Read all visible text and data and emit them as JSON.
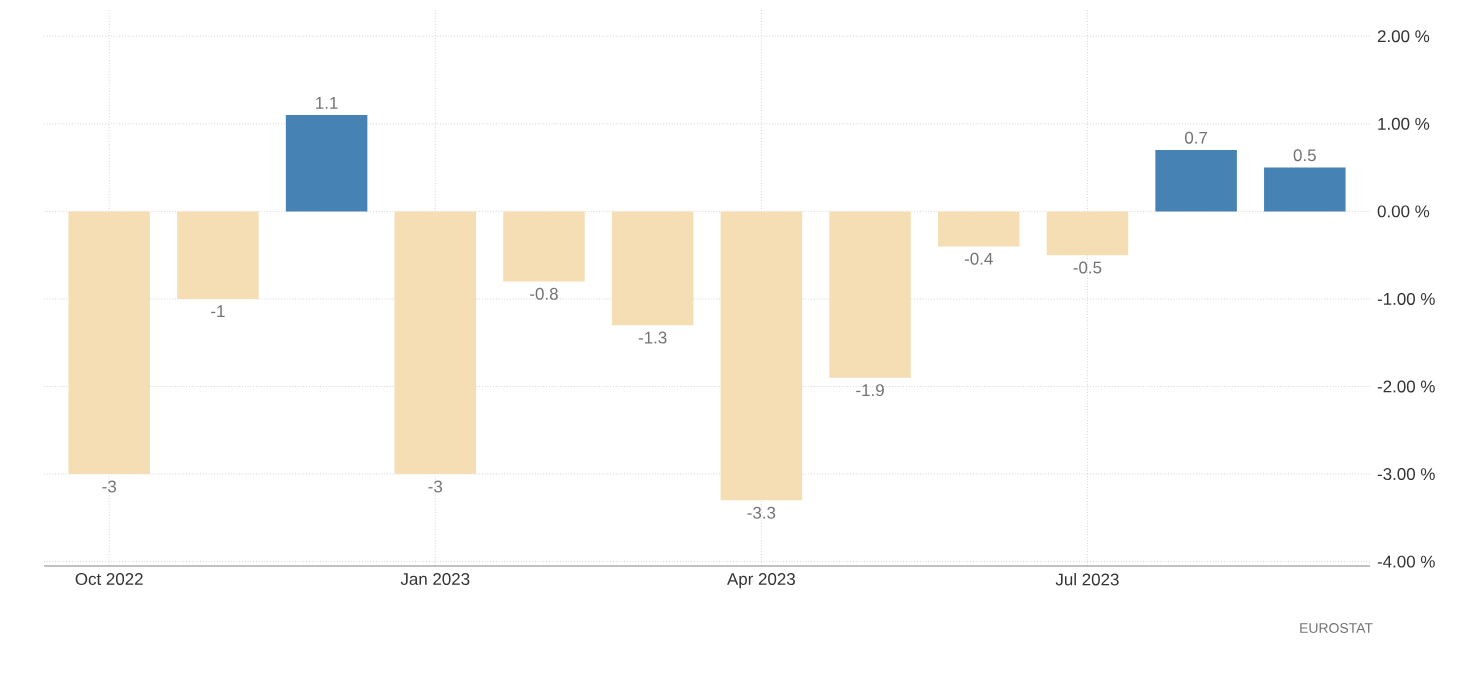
{
  "chart_data": {
    "type": "bar",
    "categories": [
      "Oct 2022",
      null,
      null,
      "Jan 2023",
      null,
      null,
      "Apr 2023",
      null,
      null,
      "Jul 2023",
      null,
      null
    ],
    "values": [
      -3,
      -1,
      1.1,
      -3,
      -0.8,
      -1.3,
      -3.3,
      -1.9,
      -0.4,
      -0.5,
      0.7,
      0.5
    ],
    "colors": [
      "#f5deb3",
      "#f5deb3",
      "#4682b4",
      "#f5deb3",
      "#f5deb3",
      "#f5deb3",
      "#f5deb3",
      "#f5deb3",
      "#f5deb3",
      "#f5deb3",
      "#4682b4",
      "#4682b4"
    ],
    "ylim": [
      -4.05,
      2.3
    ],
    "yticks": [
      {
        "value": -4,
        "label": "-4.00 %"
      },
      {
        "value": -3,
        "label": "-3.00 %"
      },
      {
        "value": -2,
        "label": "-2.00 %"
      },
      {
        "value": -1,
        "label": "-1.00 %"
      },
      {
        "value": 0,
        "label": "0.00 %"
      },
      {
        "value": 1,
        "label": "1.00 %"
      },
      {
        "value": 2,
        "label": "2.00 %"
      }
    ],
    "data_labels": true,
    "grid": true,
    "annotations": [
      "EUROSTAT"
    ]
  }
}
